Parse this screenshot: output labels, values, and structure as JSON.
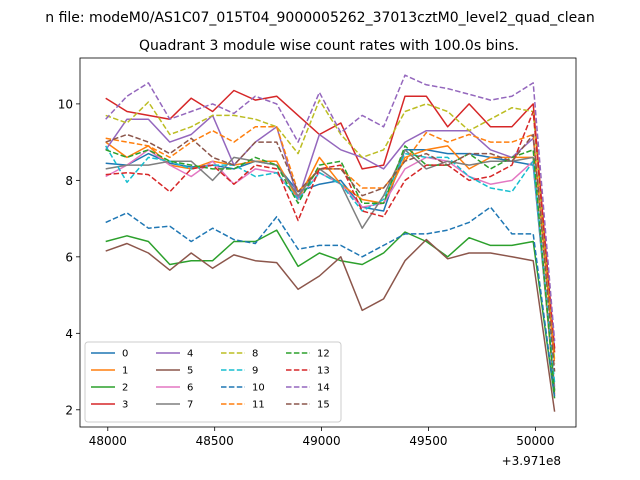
{
  "suptitle": "n file: modeM0/AS1C07_015T04_9000005262_37013cztM0_level2_quad_clean",
  "chart_data": {
    "type": "line",
    "title": "Quadrant 3 module wise count rates with 100.0s bins.",
    "xlabel": "",
    "ylabel": "",
    "offset_label": "+3.971e8",
    "x_offset": 397100000,
    "xlim": [
      47870,
      50190
    ],
    "ylim": [
      1.55,
      11.2
    ],
    "xticks": [
      48000,
      48500,
      49000,
      49500,
      50000
    ],
    "xtick_labels": [
      "48000",
      "48500",
      "49000",
      "49500",
      "50000"
    ],
    "yticks": [
      2,
      4,
      6,
      8,
      10
    ],
    "ytick_labels": [
      "2",
      "4",
      "6",
      "8",
      "10"
    ],
    "grid": false,
    "legend": "lower-left",
    "legend_columns": 4,
    "x": [
      47990,
      48090,
      48190,
      48290,
      48390,
      48490,
      48590,
      48690,
      48790,
      48890,
      48990,
      49090,
      49190,
      49290,
      49390,
      49490,
      49590,
      49690,
      49790,
      49890,
      49990,
      50090
    ],
    "series": [
      {
        "name": "0",
        "color": "#1f77b4",
        "dash": "solid",
        "values": [
          8.45,
          8.4,
          8.7,
          8.45,
          8.35,
          8.4,
          8.3,
          8.5,
          8.4,
          7.7,
          7.9,
          8.0,
          7.3,
          7.2,
          8.8,
          8.8,
          8.7,
          8.7,
          8.6,
          8.5,
          8.4,
          2.5
        ]
      },
      {
        "name": "1",
        "color": "#ff7f0e",
        "dash": "solid",
        "values": [
          9.0,
          8.6,
          8.9,
          8.4,
          8.3,
          8.5,
          8.4,
          8.5,
          8.5,
          7.5,
          8.6,
          7.9,
          7.5,
          7.4,
          8.6,
          8.8,
          8.9,
          8.3,
          8.6,
          8.6,
          8.6,
          2.4
        ]
      },
      {
        "name": "2",
        "color": "#2ca02c",
        "dash": "solid",
        "values": [
          6.4,
          6.55,
          6.4,
          5.8,
          5.9,
          5.9,
          6.4,
          6.4,
          6.7,
          5.75,
          6.1,
          5.9,
          5.8,
          6.1,
          6.65,
          6.4,
          6.0,
          6.5,
          6.3,
          6.3,
          6.4,
          2.3
        ]
      },
      {
        "name": "3",
        "color": "#d62728",
        "dash": "solid",
        "values": [
          10.15,
          9.8,
          9.7,
          9.6,
          10.15,
          9.8,
          10.35,
          10.1,
          10.2,
          9.7,
          9.2,
          9.5,
          8.3,
          8.4,
          10.2,
          10.2,
          9.4,
          10.0,
          9.4,
          9.4,
          10.0,
          3.5
        ]
      },
      {
        "name": "4",
        "color": "#9467bd",
        "dash": "solid",
        "values": [
          8.8,
          9.6,
          9.6,
          9.0,
          9.2,
          9.7,
          8.4,
          9.0,
          9.4,
          7.5,
          9.2,
          8.8,
          8.6,
          8.3,
          9.0,
          9.3,
          9.3,
          9.3,
          8.8,
          8.6,
          9.1,
          3.6
        ]
      },
      {
        "name": "5",
        "color": "#8c564b",
        "dash": "solid",
        "values": [
          6.15,
          6.35,
          6.1,
          5.65,
          6.1,
          5.7,
          6.05,
          5.9,
          5.85,
          5.15,
          5.5,
          6.0,
          4.6,
          4.9,
          5.9,
          6.45,
          5.95,
          6.1,
          6.1,
          6.0,
          5.9,
          1.95
        ]
      },
      {
        "name": "6",
        "color": "#e377c2",
        "dash": "solid",
        "values": [
          8.1,
          8.4,
          8.8,
          8.4,
          8.1,
          8.5,
          7.9,
          8.3,
          8.2,
          7.5,
          8.2,
          7.9,
          7.3,
          7.4,
          8.3,
          8.6,
          8.5,
          8.1,
          7.9,
          8.0,
          8.5,
          2.6
        ]
      },
      {
        "name": "7",
        "color": "#7f7f7f",
        "dash": "solid",
        "values": [
          8.3,
          8.4,
          8.4,
          8.5,
          8.5,
          8.0,
          8.6,
          8.5,
          8.4,
          7.6,
          8.3,
          7.9,
          6.75,
          7.6,
          8.8,
          8.3,
          8.5,
          8.4,
          8.5,
          8.5,
          8.6,
          2.5
        ]
      },
      {
        "name": "8",
        "color": "#bcbd22",
        "dash": "dashed",
        "values": [
          9.7,
          9.5,
          10.05,
          9.2,
          9.4,
          9.7,
          9.7,
          9.6,
          9.4,
          8.7,
          10.1,
          9.2,
          8.6,
          8.8,
          9.8,
          10.0,
          9.8,
          9.3,
          9.6,
          9.9,
          9.8,
          3.3
        ]
      },
      {
        "name": "9",
        "color": "#17becf",
        "dash": "dashed",
        "values": [
          8.9,
          7.95,
          8.6,
          8.5,
          8.3,
          8.4,
          8.4,
          8.1,
          8.2,
          7.5,
          8.2,
          7.9,
          7.2,
          7.5,
          8.7,
          8.6,
          8.6,
          8.1,
          7.8,
          7.7,
          8.5,
          2.7
        ]
      },
      {
        "name": "10",
        "color": "#1f77b4",
        "dash": "dashed",
        "values": [
          6.9,
          7.15,
          6.75,
          6.8,
          6.4,
          6.75,
          6.45,
          6.35,
          7.05,
          6.2,
          6.3,
          6.3,
          6.0,
          6.3,
          6.6,
          6.6,
          6.7,
          6.9,
          7.3,
          6.6,
          6.6,
          2.35
        ]
      },
      {
        "name": "11",
        "color": "#ff7f0e",
        "dash": "dashed",
        "values": [
          9.1,
          9.0,
          8.9,
          8.6,
          9.0,
          9.3,
          9.0,
          9.4,
          9.4,
          7.7,
          8.3,
          8.3,
          7.8,
          7.8,
          8.5,
          9.25,
          9.0,
          9.2,
          9.0,
          9.0,
          9.2,
          3.2
        ]
      },
      {
        "name": "12",
        "color": "#2ca02c",
        "dash": "dashed",
        "values": [
          8.8,
          8.6,
          8.8,
          8.5,
          8.4,
          8.3,
          8.3,
          8.6,
          8.4,
          7.4,
          8.4,
          8.5,
          7.4,
          7.4,
          8.9,
          8.4,
          8.4,
          8.7,
          8.3,
          8.6,
          8.8,
          2.4
        ]
      },
      {
        "name": "13",
        "color": "#d62728",
        "dash": "dashed",
        "values": [
          8.15,
          8.2,
          8.15,
          7.7,
          8.3,
          8.4,
          7.9,
          8.4,
          8.3,
          6.95,
          8.3,
          8.4,
          7.2,
          7.05,
          8.0,
          8.4,
          8.4,
          8.0,
          8.1,
          8.4,
          9.8,
          3.6
        ]
      },
      {
        "name": "14",
        "color": "#9467bd",
        "dash": "dashed",
        "values": [
          9.6,
          10.2,
          10.55,
          9.6,
          9.8,
          10.0,
          9.75,
          10.2,
          10.0,
          9.0,
          10.3,
          9.25,
          9.7,
          9.4,
          10.75,
          10.5,
          10.4,
          10.25,
          10.1,
          10.2,
          10.55,
          3.8
        ]
      },
      {
        "name": "15",
        "color": "#8c564b",
        "dash": "dashed",
        "values": [
          9.0,
          9.2,
          9.0,
          8.7,
          9.1,
          8.6,
          8.4,
          9.0,
          9.0,
          7.7,
          8.3,
          8.3,
          7.6,
          7.8,
          8.5,
          8.7,
          8.4,
          8.7,
          8.7,
          8.5,
          9.2,
          3.0
        ]
      }
    ]
  }
}
